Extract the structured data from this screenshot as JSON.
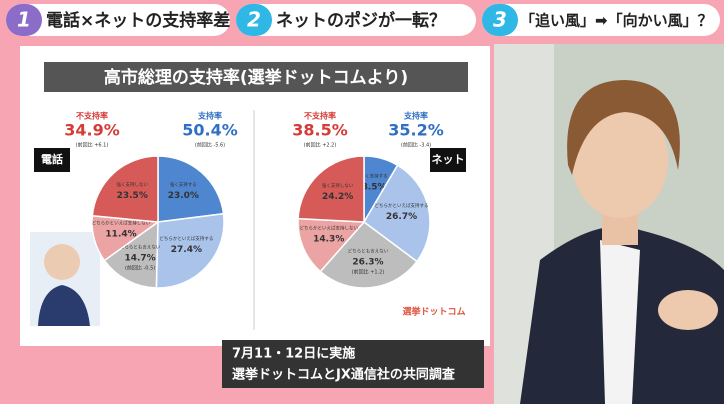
{
  "header": {
    "items": [
      {
        "number": "1",
        "label": "電話×ネットの支持率差"
      },
      {
        "number": "2",
        "label": "ネットのポジが一転？"
      },
      {
        "number": "3",
        "label": "「追い風」➡「向かい風」？"
      }
    ]
  },
  "slide": {
    "title": "高市総理の支持率(選挙ドットコムより)",
    "logo": "選挙ドットコム"
  },
  "caption": {
    "line1": "7月11・12日に実施",
    "line2": "選挙ドットコムとJX通信社の共同調査"
  },
  "chart_data": [
    {
      "type": "pie",
      "badge": "電話",
      "categories": [
        "強く支持する",
        "どちらかといえば支持する",
        "どちらとも言えない",
        "どちらかといえば支持しない",
        "強く支持しない"
      ],
      "values": [
        23.0,
        27.4,
        14.7,
        11.4,
        23.5
      ],
      "value_labels": [
        "23.0%",
        "27.4%",
        "14.7%",
        "11.4%",
        "23.5%"
      ],
      "colors": [
        "#4f86d0",
        "#a9c3ea",
        "#bdbdbd",
        "#eba3a3",
        "#d65a57"
      ],
      "support": {
        "label": "支持率",
        "value_label": "50.4%",
        "change": "(前回比 -5.6)"
      },
      "disapprove": {
        "label": "不支持率",
        "value_label": "34.9%",
        "change": "(前回比 +6.1)"
      },
      "neutral_change": "(前回比 -0.5)"
    },
    {
      "type": "pie",
      "badge": "ネット",
      "categories": [
        "強く支持する",
        "どちらかといえば支持する",
        "どちらとも言えない",
        "どちらかといえば支持しない",
        "強く支持しない"
      ],
      "values": [
        8.5,
        26.7,
        26.3,
        14.3,
        24.2
      ],
      "value_labels": [
        "8.5%",
        "26.7%",
        "26.3%",
        "14.3%",
        "24.2%"
      ],
      "colors": [
        "#4f86d0",
        "#a9c3ea",
        "#bdbdbd",
        "#eba3a3",
        "#d65a57"
      ],
      "support": {
        "label": "支持率",
        "value_label": "35.2%",
        "change": "(前回比 -3.4)"
      },
      "disapprove": {
        "label": "不支持率",
        "value_label": "38.5%",
        "change": "(前回比 +2.2)"
      },
      "neutral_change": "(前回比 +1.2)"
    }
  ]
}
